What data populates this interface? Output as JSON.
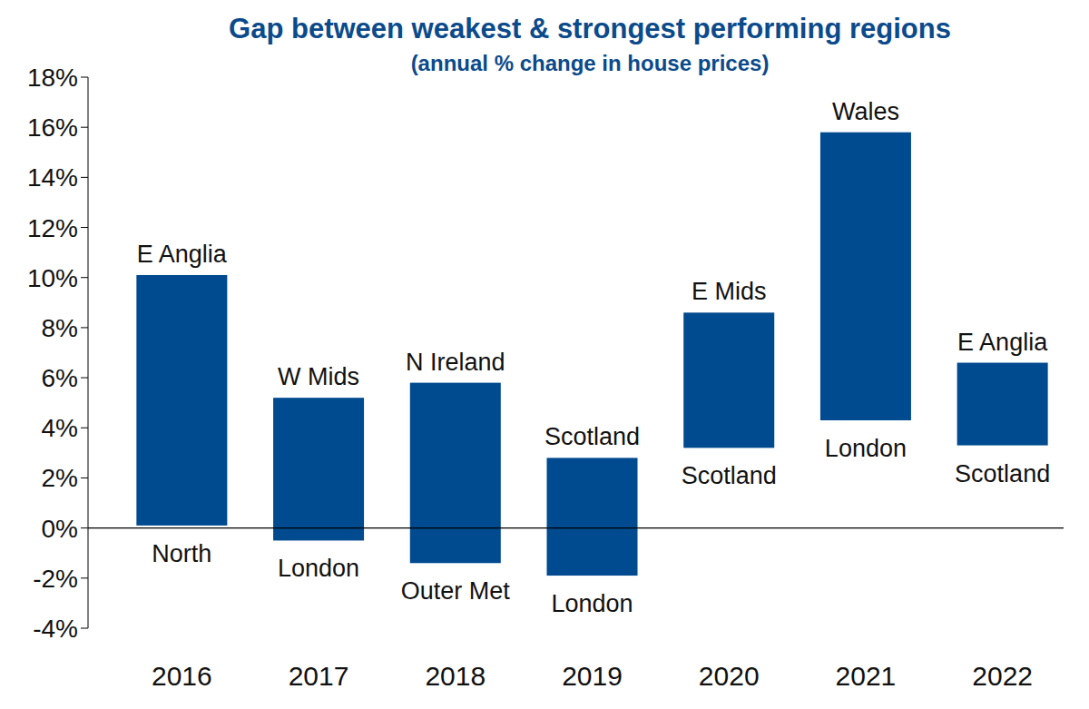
{
  "chart_data": {
    "type": "bar",
    "title": "Gap between weakest & strongest performing regions",
    "subtitle": "(annual % change in house prices)",
    "categories": [
      "2016",
      "2017",
      "2018",
      "2019",
      "2020",
      "2021",
      "2022"
    ],
    "low": [
      0.1,
      -0.5,
      -1.4,
      -1.9,
      3.2,
      4.3,
      3.3
    ],
    "high": [
      10.1,
      5.2,
      5.8,
      2.8,
      8.6,
      15.8,
      6.6
    ],
    "high_labels": [
      "E Anglia",
      "W Mids",
      "N Ireland",
      "Scotland",
      "E Mids",
      "Wales",
      "E Anglia"
    ],
    "low_labels": [
      "North",
      "London",
      "Outer Met",
      "London",
      "Scotland",
      "London",
      "Scotland"
    ],
    "color": "#004a8f",
    "ylim": [
      -4,
      18
    ],
    "yticks": [
      {
        "value": -4,
        "label": "-4%"
      },
      {
        "value": -2,
        "label": "-2%"
      },
      {
        "value": 0,
        "label": "0%"
      },
      {
        "value": 2,
        "label": "2%"
      },
      {
        "value": 4,
        "label": "4%"
      },
      {
        "value": 6,
        "label": "6%"
      },
      {
        "value": 8,
        "label": "8%"
      },
      {
        "value": 10,
        "label": "10%"
      },
      {
        "value": 12,
        "label": "12%"
      },
      {
        "value": 14,
        "label": "14%"
      },
      {
        "value": 16,
        "label": "16%"
      },
      {
        "value": 18,
        "label": "18%"
      }
    ],
    "grid": false
  }
}
